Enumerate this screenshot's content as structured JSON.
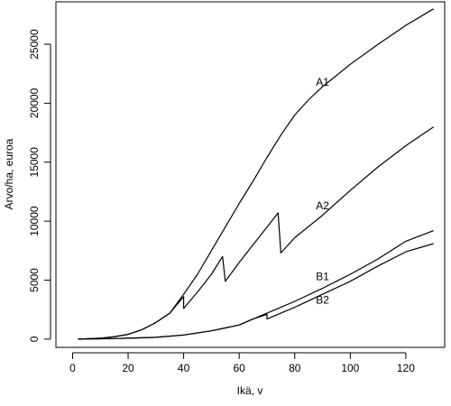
{
  "chart_data": {
    "type": "line",
    "title": "",
    "xlabel": "Ikä, v",
    "ylabel": "Arvo/ha, euroa",
    "xlim": [
      -6,
      134
    ],
    "ylim": [
      -700,
      28600
    ],
    "xticks": [
      0,
      20,
      40,
      60,
      80,
      100,
      120
    ],
    "yticks": [
      0,
      5000,
      10000,
      15000,
      20000,
      25000
    ],
    "grid": false,
    "legend": "none",
    "line_color": "#000000",
    "series": [
      {
        "name": "A1",
        "label_at": [
          90,
          21500
        ],
        "points": [
          [
            2,
            0
          ],
          [
            10,
            80
          ],
          [
            15,
            200
          ],
          [
            20,
            400
          ],
          [
            25,
            800
          ],
          [
            30,
            1400
          ],
          [
            35,
            2200
          ],
          [
            40,
            3800
          ],
          [
            45,
            5500
          ],
          [
            50,
            7500
          ],
          [
            55,
            9500
          ],
          [
            60,
            11500
          ],
          [
            65,
            13400
          ],
          [
            70,
            15400
          ],
          [
            75,
            17300
          ],
          [
            80,
            19000
          ],
          [
            85,
            20300
          ],
          [
            90,
            21400
          ],
          [
            100,
            23300
          ],
          [
            110,
            25000
          ],
          [
            120,
            26600
          ],
          [
            130,
            28000
          ]
        ]
      },
      {
        "name": "A2",
        "label_at": [
          90,
          11000
        ],
        "points": [
          [
            2,
            0
          ],
          [
            10,
            80
          ],
          [
            15,
            200
          ],
          [
            20,
            400
          ],
          [
            25,
            800
          ],
          [
            30,
            1400
          ],
          [
            35,
            2200
          ],
          [
            40,
            3600
          ],
          [
            40,
            2600
          ],
          [
            45,
            4000
          ],
          [
            50,
            5500
          ],
          [
            54,
            7000
          ],
          [
            55,
            4900
          ],
          [
            60,
            6500
          ],
          [
            65,
            8000
          ],
          [
            70,
            9500
          ],
          [
            74,
            10700
          ],
          [
            75,
            7300
          ],
          [
            80,
            8600
          ],
          [
            90,
            10500
          ],
          [
            100,
            12600
          ],
          [
            110,
            14600
          ],
          [
            120,
            16400
          ],
          [
            130,
            18000
          ]
        ]
      },
      {
        "name": "B1",
        "label_at": [
          90,
          5000
        ],
        "points": [
          [
            2,
            0
          ],
          [
            10,
            30
          ],
          [
            20,
            70
          ],
          [
            30,
            150
          ],
          [
            40,
            350
          ],
          [
            50,
            700
          ],
          [
            60,
            1200
          ],
          [
            65,
            1700
          ],
          [
            70,
            2200
          ],
          [
            75,
            2700
          ],
          [
            80,
            3200
          ],
          [
            90,
            4300
          ],
          [
            100,
            5500
          ],
          [
            110,
            6800
          ],
          [
            120,
            8300
          ],
          [
            130,
            9200
          ]
        ]
      },
      {
        "name": "B2",
        "label_at": [
          90,
          3000
        ],
        "points": [
          [
            2,
            0
          ],
          [
            10,
            30
          ],
          [
            20,
            70
          ],
          [
            30,
            150
          ],
          [
            40,
            350
          ],
          [
            50,
            700
          ],
          [
            60,
            1200
          ],
          [
            65,
            1700
          ],
          [
            70,
            2100
          ],
          [
            70,
            1700
          ],
          [
            75,
            2200
          ],
          [
            80,
            2700
          ],
          [
            90,
            3800
          ],
          [
            100,
            4900
          ],
          [
            110,
            6200
          ],
          [
            120,
            7400
          ],
          [
            130,
            8100
          ]
        ]
      }
    ]
  }
}
